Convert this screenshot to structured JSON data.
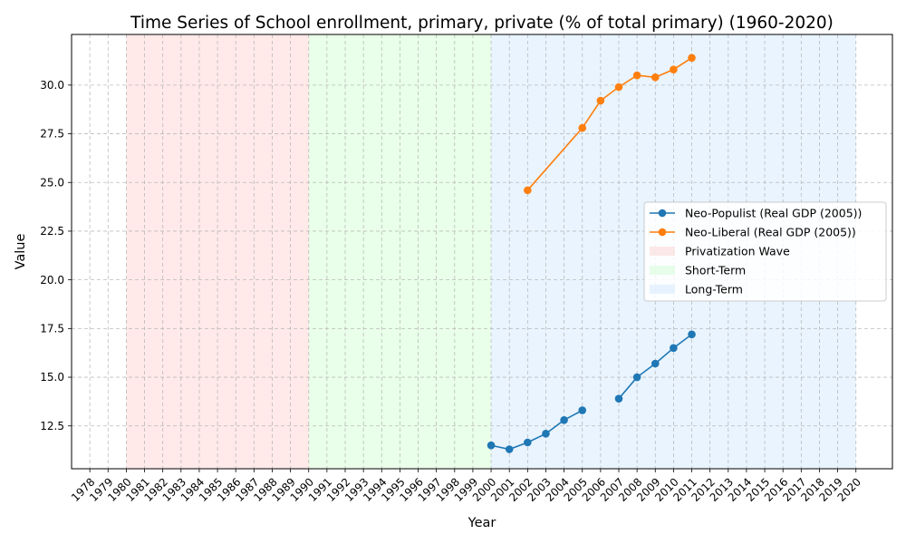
{
  "chart_data": {
    "type": "line",
    "title": "Time Series of School enrollment, primary, private (% of total primary) (1960-2020)",
    "xlabel": "Year",
    "ylabel": "Value",
    "x_ticks": [
      1978,
      1979,
      1980,
      1981,
      1982,
      1983,
      1984,
      1985,
      1986,
      1987,
      1988,
      1989,
      1990,
      1991,
      1992,
      1993,
      1994,
      1995,
      1996,
      1997,
      1998,
      1999,
      2000,
      2001,
      2002,
      2003,
      2004,
      2005,
      2006,
      2007,
      2008,
      2009,
      2010,
      2011,
      2012,
      2013,
      2014,
      2015,
      2016,
      2017,
      2018,
      2019,
      2020
    ],
    "y_ticks": [
      12.5,
      15.0,
      17.5,
      20.0,
      22.5,
      25.0,
      27.5,
      30.0
    ],
    "y_tick_labels": [
      "12.5",
      "15.0",
      "17.5",
      "20.0",
      "22.5",
      "25.0",
      "27.5",
      "30.0"
    ],
    "xlim": [
      1977,
      2022
    ],
    "ylim": [
      10.3,
      32.6
    ],
    "grid": true,
    "legend_position": "right",
    "series": [
      {
        "name": "Neo-Populist (Real GDP (2005))",
        "color": "#1f77b4",
        "x": [
          2000,
          2001,
          2002,
          2003,
          2004,
          2005,
          2006,
          2007,
          2008,
          2009,
          2010,
          2011
        ],
        "y": [
          11.5,
          11.3,
          11.65,
          12.1,
          12.8,
          13.3,
          null,
          13.9,
          15.0,
          15.7,
          16.5,
          17.2
        ]
      },
      {
        "name": "Neo-Liberal (Real GDP (2005))",
        "color": "#ff7f0e",
        "x": [
          2002,
          2005,
          2006,
          2007,
          2008,
          2009,
          2010,
          2011
        ],
        "y": [
          24.6,
          27.8,
          29.2,
          29.9,
          30.5,
          30.4,
          30.8,
          31.4
        ]
      }
    ],
    "regions": [
      {
        "name": "Privatization Wave",
        "start": 1980,
        "end": 1990,
        "color": "#ff9999"
      },
      {
        "name": "Short-Term",
        "start": 1990,
        "end": 2000,
        "color": "#99ff99"
      },
      {
        "name": "Long-Term",
        "start": 2000,
        "end": 2020,
        "color": "#99ccff"
      }
    ]
  }
}
